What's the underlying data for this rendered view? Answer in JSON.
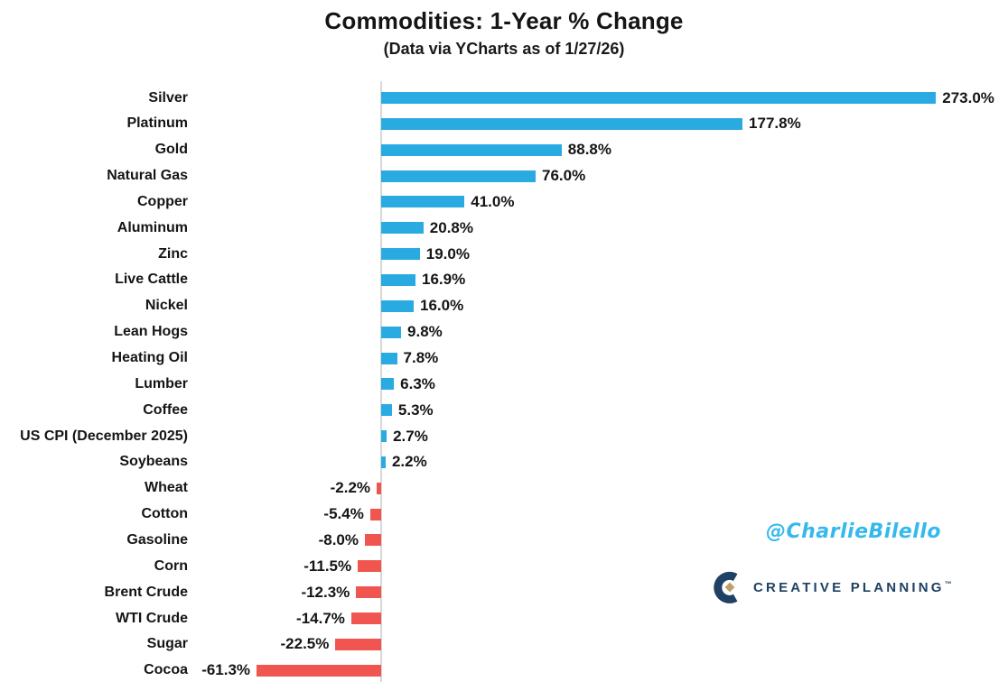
{
  "chart_data": {
    "type": "bar",
    "orientation": "horizontal",
    "title": "Commodities: 1-Year % Change",
    "subtitle": "(Data via YCharts as of 1/27/26)",
    "xlabel": "",
    "ylabel": "",
    "xlim": [
      -70,
      290
    ],
    "grid": false,
    "legend": "none",
    "categories": [
      "Silver",
      "Platinum",
      "Gold",
      "Natural Gas",
      "Copper",
      "Aluminum",
      "Zinc",
      "Live Cattle",
      "Nickel",
      "Lean Hogs",
      "Heating Oil",
      "Lumber",
      "Coffee",
      "US CPI (December 2025)",
      "Soybeans",
      "Wheat",
      "Cotton",
      "Gasoline",
      "Corn",
      "Brent Crude",
      "WTI Crude",
      "Sugar",
      "Cocoa"
    ],
    "values": [
      273.0,
      177.8,
      88.8,
      76.0,
      41.0,
      20.8,
      19.0,
      16.9,
      16.0,
      9.8,
      7.8,
      6.3,
      5.3,
      2.7,
      2.2,
      -2.2,
      -5.4,
      -8.0,
      -11.5,
      -12.3,
      -14.7,
      -22.5,
      -61.3
    ],
    "value_labels": [
      "273.0%",
      "177.8%",
      "88.8%",
      "76.0%",
      "41.0%",
      "20.8%",
      "19.0%",
      "16.9%",
      "16.0%",
      "9.8%",
      "7.8%",
      "6.3%",
      "5.3%",
      "2.7%",
      "2.2%",
      "-2.2%",
      "-5.4%",
      "-8.0%",
      "-11.5%",
      "-12.3%",
      "-14.7%",
      "-22.5%",
      "-61.3%"
    ]
  },
  "watermark": {
    "handle": "@CharlieBilello",
    "brand": "CREATIVE PLANNING",
    "brand_tm": "™"
  },
  "colors": {
    "positive_bar": "#29ABE2",
    "negative_bar": "#F0564F",
    "axis": "#D8D8D8",
    "text": "#151515",
    "handle_blue": "#35B9EC",
    "brand_navy": "#1E4164",
    "brand_gold": "#BEA064"
  }
}
